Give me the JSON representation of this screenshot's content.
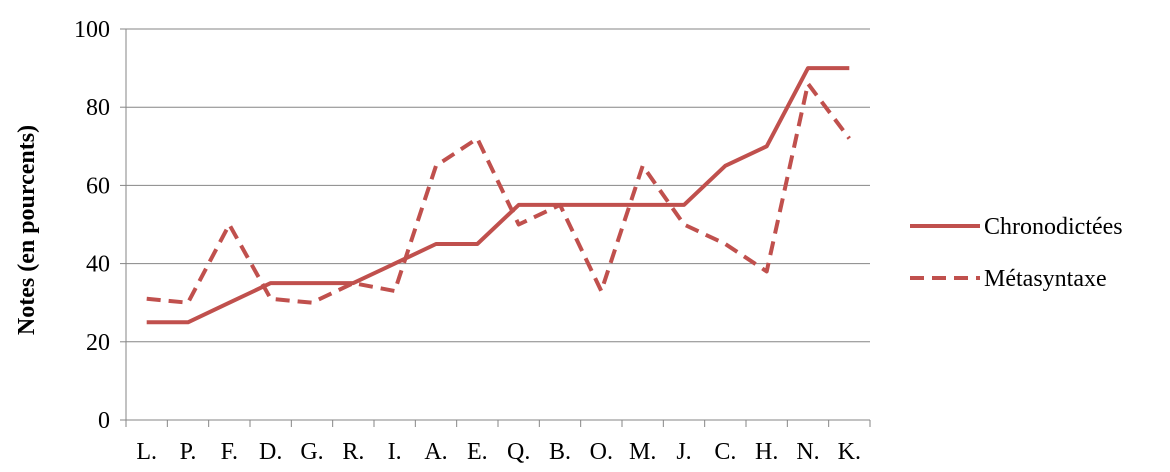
{
  "chart_data": {
    "type": "line",
    "title": "",
    "xlabel": "",
    "ylabel": "Notes (en pourcents)",
    "ylim": [
      0,
      100
    ],
    "yticks": [
      0,
      20,
      40,
      60,
      80,
      100
    ],
    "grid": "horizontal",
    "legend_position": "right",
    "categories": [
      "L.",
      "P.",
      "F.",
      "D.",
      "G.",
      "R.",
      "I.",
      "A.",
      "E.",
      "Q.",
      "B.",
      "O.",
      "M.",
      "J.",
      "C.",
      "H.",
      "N.",
      "K."
    ],
    "series": [
      {
        "name": "Chronodictées",
        "style": "solid",
        "color": "#c0504d",
        "values": [
          25,
          25,
          30,
          35,
          35,
          35,
          40,
          45,
          45,
          55,
          55,
          55,
          55,
          55,
          65,
          70,
          90,
          90
        ]
      },
      {
        "name": "Métasyntaxe",
        "style": "dashed",
        "color": "#c0504d",
        "values": [
          31,
          30,
          50,
          31,
          30,
          35,
          33,
          65,
          72,
          50,
          55,
          33,
          65,
          50,
          45,
          38,
          86,
          72
        ]
      }
    ]
  }
}
